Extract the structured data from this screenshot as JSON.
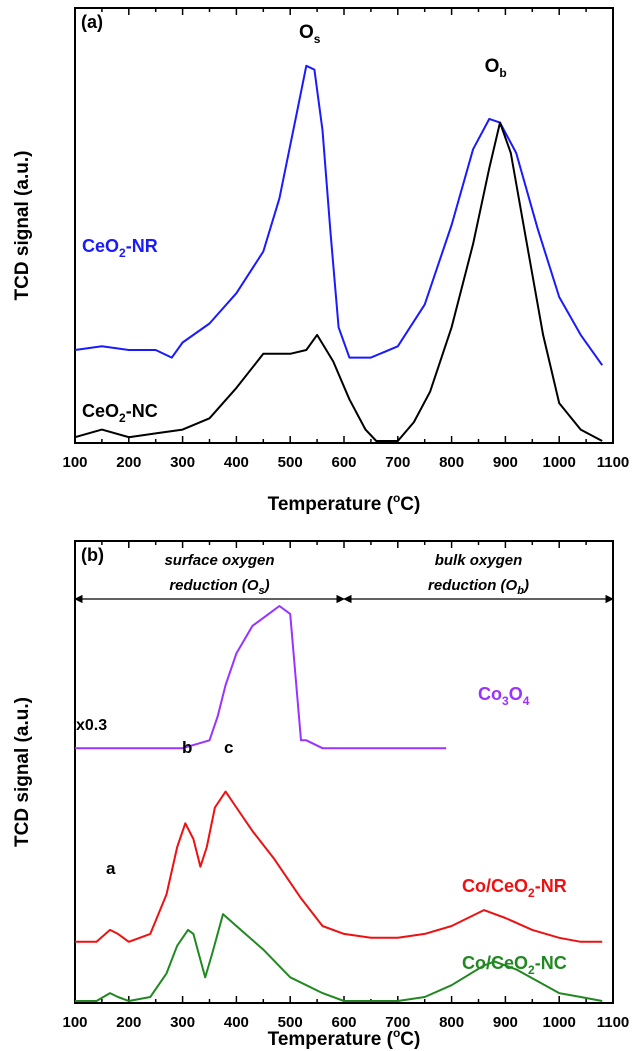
{
  "chart_data": [
    {
      "type": "line",
      "panel_label": "(a)",
      "xlabel": "Temperature (",
      "xlabel_sup": "o",
      "xlabel_end": "C)",
      "ylabel": "TCD signal (a.u.)",
      "xlim": [
        100,
        1100
      ],
      "xticks": [
        100,
        200,
        300,
        400,
        500,
        600,
        700,
        800,
        900,
        1000,
        1100
      ],
      "yticks_shown": false,
      "peak_labels": [
        {
          "main": "O",
          "sub": "s",
          "x": 535
        },
        {
          "main": "O",
          "sub": "b",
          "x": 880
        }
      ],
      "series": [
        {
          "name_main": "CeO",
          "name_sub": "2",
          "name_end": "-NR",
          "color": "#1a1aff",
          "x": [
            100,
            150,
            200,
            250,
            280,
            300,
            350,
            400,
            450,
            480,
            510,
            530,
            545,
            560,
            575,
            590,
            610,
            650,
            700,
            750,
            800,
            840,
            870,
            890,
            920,
            960,
            1000,
            1040,
            1080
          ],
          "y": [
            0.24,
            0.25,
            0.24,
            0.24,
            0.22,
            0.26,
            0.31,
            0.39,
            0.5,
            0.64,
            0.85,
            0.99,
            0.98,
            0.82,
            0.55,
            0.3,
            0.22,
            0.22,
            0.25,
            0.36,
            0.57,
            0.77,
            0.85,
            0.84,
            0.76,
            0.56,
            0.38,
            0.28,
            0.2
          ]
        },
        {
          "name_main": "CeO",
          "name_sub": "2",
          "name_end": "-NC",
          "color": "#000000",
          "x": [
            100,
            150,
            200,
            250,
            300,
            350,
            400,
            450,
            500,
            530,
            550,
            580,
            610,
            640,
            660,
            700,
            730,
            760,
            800,
            840,
            870,
            890,
            910,
            940,
            970,
            1000,
            1040,
            1080
          ],
          "y": [
            0.01,
            0.03,
            0.01,
            0.02,
            0.03,
            0.06,
            0.14,
            0.23,
            0.23,
            0.24,
            0.28,
            0.21,
            0.11,
            0.03,
            0.0,
            0.0,
            0.05,
            0.13,
            0.3,
            0.52,
            0.72,
            0.84,
            0.76,
            0.52,
            0.28,
            0.1,
            0.03,
            0.0
          ]
        }
      ]
    },
    {
      "type": "line",
      "panel_label": "(b)",
      "xlabel": "Temperature (",
      "xlabel_sup": "o",
      "xlabel_end": "C)",
      "ylabel": "TCD signal (a.u.)",
      "xlim": [
        100,
        1100
      ],
      "xticks": [
        100,
        200,
        300,
        400,
        500,
        600,
        700,
        800,
        900,
        1000,
        1100
      ],
      "yticks_shown": false,
      "regions": [
        {
          "line1": "surface oxygen",
          "line2_main": "reduction (O",
          "line2_sub": "s",
          "line2_end": ")",
          "x_start": 100,
          "x_end": 600
        },
        {
          "line1": "bulk oxygen",
          "line2_main": "reduction (O",
          "line2_sub": "b",
          "line2_end": ")",
          "x_start": 600,
          "x_end": 1100
        }
      ],
      "scale_note": "x0.3",
      "peak_labels": [
        {
          "text": "a",
          "x": 165
        },
        {
          "text": "b",
          "x": 305
        },
        {
          "text": "c",
          "x": 385
        }
      ],
      "series": [
        {
          "name_main": "Co",
          "name_sub": "3",
          "name_mid": "O",
          "name_sub2": "4",
          "name_end": "",
          "color": "#9933ff",
          "x": [
            100,
            200,
            300,
            350,
            365,
            380,
            400,
            430,
            460,
            480,
            500,
            510,
            520,
            530,
            560,
            600,
            700,
            790
          ],
          "y": [
            0.64,
            0.64,
            0.64,
            0.66,
            0.72,
            0.8,
            0.88,
            0.95,
            0.98,
            1.0,
            0.98,
            0.82,
            0.66,
            0.66,
            0.64,
            0.64,
            0.64,
            0.64
          ]
        },
        {
          "name_main": "Co/CeO",
          "name_sub": "2",
          "name_end": "-NR",
          "color": "#ee1111",
          "x": [
            100,
            140,
            165,
            180,
            200,
            240,
            270,
            290,
            305,
            320,
            333,
            345,
            360,
            380,
            400,
            430,
            470,
            520,
            560,
            600,
            650,
            700,
            750,
            800,
            860,
            900,
            950,
            1000,
            1040,
            1080
          ],
          "y": [
            0.15,
            0.15,
            0.18,
            0.17,
            0.15,
            0.17,
            0.27,
            0.39,
            0.45,
            0.41,
            0.34,
            0.39,
            0.49,
            0.53,
            0.49,
            0.43,
            0.36,
            0.26,
            0.19,
            0.17,
            0.16,
            0.16,
            0.17,
            0.19,
            0.23,
            0.21,
            0.18,
            0.16,
            0.15,
            0.15
          ]
        },
        {
          "name_main": "Co/CeO",
          "name_sub": "2",
          "name_end": "-NC",
          "color": "#228822",
          "x": [
            100,
            140,
            165,
            180,
            200,
            240,
            270,
            290,
            310,
            320,
            330,
            342,
            355,
            375,
            400,
            450,
            500,
            560,
            600,
            650,
            700,
            750,
            800,
            860,
            880,
            920,
            960,
            1000,
            1040,
            1080
          ],
          "y": [
            0.0,
            0.0,
            0.02,
            0.01,
            0.0,
            0.01,
            0.07,
            0.14,
            0.18,
            0.17,
            0.12,
            0.06,
            0.12,
            0.22,
            0.19,
            0.13,
            0.06,
            0.02,
            0.0,
            0.0,
            0.0,
            0.01,
            0.04,
            0.09,
            0.1,
            0.08,
            0.05,
            0.02,
            0.01,
            0.0
          ]
        }
      ]
    }
  ]
}
